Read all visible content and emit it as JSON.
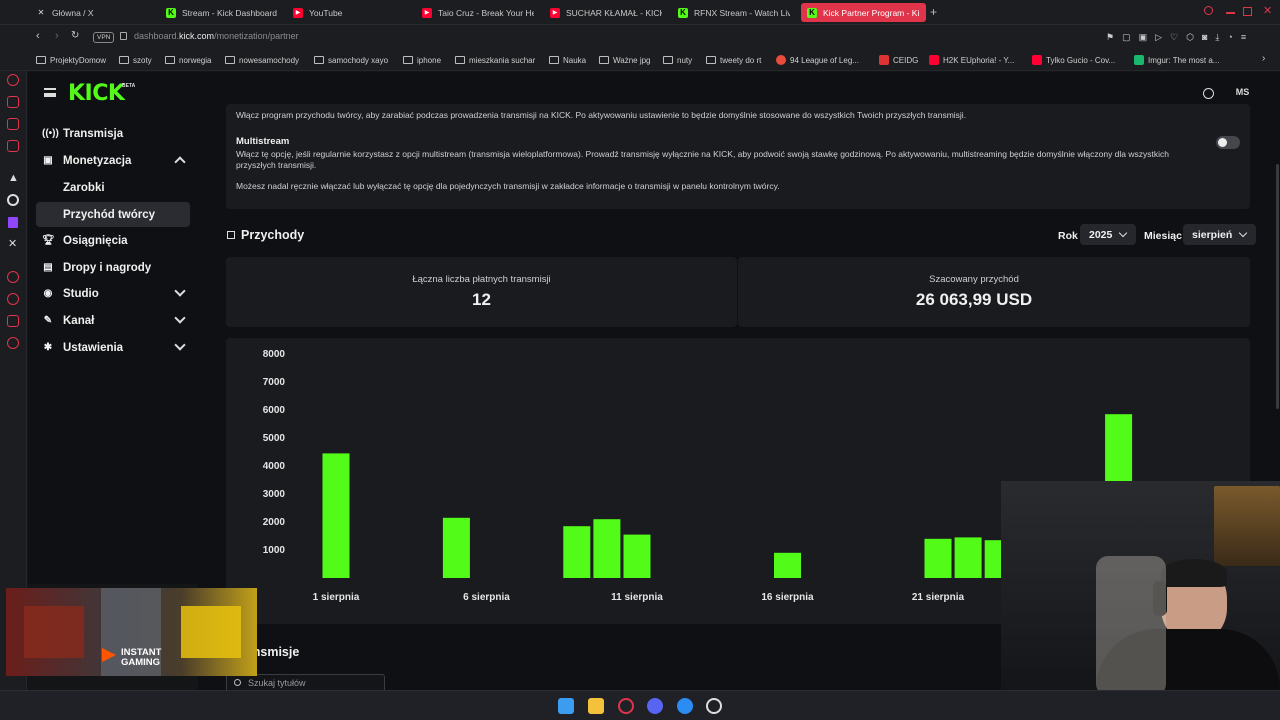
{
  "browser": {
    "tabs": [
      {
        "label": "Główna / X",
        "icon": "x-icon"
      },
      {
        "label": "Stream - Kick Dashboard",
        "icon": "kick-icon"
      },
      {
        "label": "YouTube",
        "icon": "youtube-icon"
      },
      {
        "label": "Taio Cruz - Break Your He",
        "icon": "youtube-icon"
      },
      {
        "label": "SUCHAR KŁAMAŁ - KICK",
        "icon": "youtube-icon"
      },
      {
        "label": "RFNX Stream - Watch Live",
        "icon": "kick-icon"
      },
      {
        "label": "Kick Partner Program - Ki",
        "icon": "kick-icon"
      }
    ],
    "url_prefix": "dashboard.",
    "url_domain": "kick.com",
    "url_path": "/monetization/partner",
    "vpn_label": "VPN",
    "bookmarks": [
      {
        "label": "ProjektyDomow",
        "type": "folder"
      },
      {
        "label": "szoty",
        "type": "folder"
      },
      {
        "label": "norwegia",
        "type": "folder"
      },
      {
        "label": "nowesamochody",
        "type": "folder"
      },
      {
        "label": "samochody xayo",
        "type": "folder"
      },
      {
        "label": "iphone",
        "type": "folder"
      },
      {
        "label": "mieszkania suchar",
        "type": "folder"
      },
      {
        "label": "Nauka",
        "type": "folder"
      },
      {
        "label": "Ważne jpg",
        "type": "folder"
      },
      {
        "label": "nuty",
        "type": "folder"
      },
      {
        "label": "tweety do rt",
        "type": "folder"
      },
      {
        "label": "94 League of Leg...",
        "type": "site"
      },
      {
        "label": "CEIDG",
        "type": "site"
      },
      {
        "label": "H2K EUphoria! - Y...",
        "type": "site"
      },
      {
        "label": "Tylko Gucio - Cov...",
        "type": "site"
      },
      {
        "label": "Imgur: The most a...",
        "type": "site"
      }
    ]
  },
  "kick": {
    "logo": "KICK",
    "logo_badge": "BETA",
    "user_initials": "MS",
    "nav": [
      {
        "label": "Transmisja",
        "icon": "broadcast-icon"
      },
      {
        "label": "Monetyzacja",
        "icon": "monetization-icon"
      },
      {
        "label": "Zarobki",
        "icon": ""
      },
      {
        "label": "Przychód twórcy",
        "icon": ""
      },
      {
        "label": "Osiągnięcia",
        "icon": "trophy-icon"
      },
      {
        "label": "Dropy i nagrody",
        "icon": "gift-icon"
      },
      {
        "label": "Studio",
        "icon": "studio-icon"
      },
      {
        "label": "Kanał",
        "icon": "channel-icon"
      },
      {
        "label": "Ustawienia",
        "icon": "gear-icon"
      }
    ]
  },
  "settings": {
    "partner_desc": "Włącz program przychodu twórcy, aby zarabiać podczas prowadzenia transmisji na KICK. Po aktywowaniu ustawienie to będzie domyślnie stosowane do wszystkich Twoich przyszłych transmisji.",
    "multistream_title": "Multistream",
    "multistream_desc": "Włącz tę opcję, jeśli regularnie korzystasz z opcji multistream (transmisja wieloplatformowa). Prowadź transmisję wyłącznie na KICK, aby podwoić swoją stawkę godzinową. Po aktywowaniu, multistreaming będzie domyślnie włączony dla wszystkich przyszłych transmisji.",
    "multistream_note": "Możesz nadal ręcznie włączać lub wyłączać tę opcję dla pojedynczych transmisji w zakładce informacje o transmisji w panelu kontrolnym twórcy.",
    "multistream_enabled": false
  },
  "revenue": {
    "title": "Przychody",
    "year_label": "Rok",
    "year_value": "2025",
    "month_label": "Miesiąc",
    "month_value": "sierpień",
    "paid_streams_label": "Łączna liczba płatnych transmisji",
    "paid_streams_value": "12",
    "estimated_label": "Szacowany przychód",
    "estimated_value": "26 063,99 USD"
  },
  "chart_data": {
    "type": "bar",
    "bar_color": "#53fc18",
    "ylim": [
      0,
      8000
    ],
    "y_ticks": [
      "1000",
      "2000",
      "3000",
      "4000",
      "5000",
      "6000",
      "7000",
      "8000"
    ],
    "x_tick_labels": [
      {
        "day": 1,
        "label": "1 sierpnia"
      },
      {
        "day": 6,
        "label": "6 sierpnia"
      },
      {
        "day": 11,
        "label": "11 sierpnia"
      },
      {
        "day": 16,
        "label": "16 sierpnia"
      },
      {
        "day": 21,
        "label": "21 sierpnia"
      }
    ],
    "bars": [
      {
        "day": 1,
        "value": 4450
      },
      {
        "day": 5,
        "value": 2150
      },
      {
        "day": 9,
        "value": 1850
      },
      {
        "day": 10,
        "value": 2100
      },
      {
        "day": 11,
        "value": 1550
      },
      {
        "day": 16,
        "value": 900
      },
      {
        "day": 21,
        "value": 1400
      },
      {
        "day": 22,
        "value": 1450
      },
      {
        "day": 23,
        "value": 1350
      },
      {
        "day": 27,
        "value": 5850
      }
    ]
  },
  "streams_section": {
    "title": "Transmisje",
    "search_placeholder": "Szukaj tytułów"
  },
  "ad": {
    "brand": "INSTANT GAMING"
  }
}
